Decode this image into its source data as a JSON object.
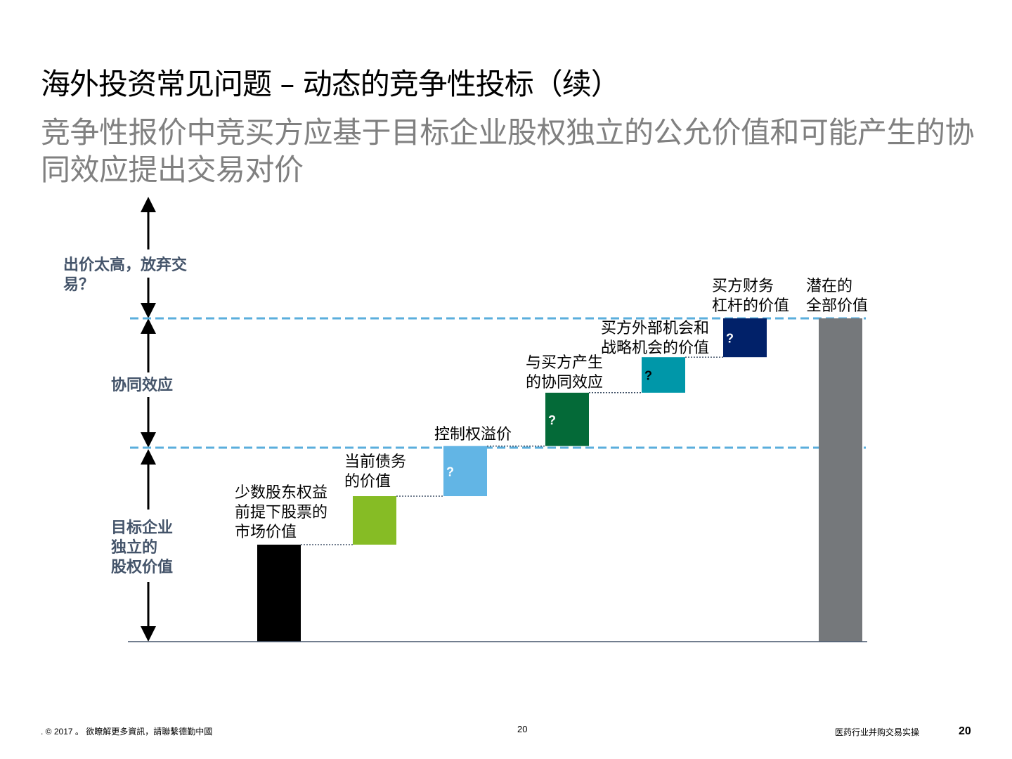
{
  "slide": {
    "title": "海外投资常见问题 – 动态的竞争性投标（续）",
    "subtitle": "竞争性报价中竞买方应基于目标企业股权独立的公允价值和可能产生的协同效应提出交易对价"
  },
  "side_labels": {
    "top": "出价太高，放弃交易？",
    "middle": "协同效应",
    "bottom_lines": [
      "目标企业",
      "独立的",
      "股权价值"
    ]
  },
  "chart_data": {
    "type": "waterfall",
    "title": "",
    "xlabel": "",
    "ylabel": "",
    "ylim": [
      0,
      100
    ],
    "grid": false,
    "reference_lines": [
      {
        "name": "standalone-equity-value-line",
        "value": 60,
        "style": "dashed",
        "color": "#5aaedc"
      },
      {
        "name": "full-potential-value-line",
        "value": 100,
        "style": "dashed",
        "color": "#5aaedc"
      }
    ],
    "bars": [
      {
        "label_lines": [
          "少数股东权益",
          "前提下股票的",
          "市场价值"
        ],
        "base": 0,
        "value": 30,
        "color": "#000000",
        "marker": ""
      },
      {
        "label_lines": [
          "当前债务",
          "的价值"
        ],
        "base": 30,
        "value": 15,
        "color": "#86bc25",
        "marker": ""
      },
      {
        "label_lines": [
          "控制权溢价"
        ],
        "base": 45,
        "value": 15.5,
        "color": "#62b5e5",
        "marker": "?"
      },
      {
        "label_lines": [
          "与买方产生",
          "的协同效应"
        ],
        "base": 60.5,
        "value": 16.5,
        "color": "#046a38",
        "marker": "?"
      },
      {
        "label_lines": [
          "买方外部机会和",
          "战略机会的价值"
        ],
        "base": 77,
        "value": 11,
        "color": "#0097a9",
        "marker": "?"
      },
      {
        "label_lines": [
          "买方财务",
          "杠杆的价值"
        ],
        "base": 88,
        "value": 12,
        "color": "#012169",
        "marker": "?"
      },
      {
        "label_lines": [
          "潜在的",
          "全部价值"
        ],
        "base": 0,
        "value": 100,
        "color": "#75787b",
        "marker": ""
      }
    ]
  },
  "footer": {
    "copyright": ". © 2017 。 欲瞭解更多資訊，請聯繫德勤中國",
    "center_page": "20",
    "doc_title": "医药行业并购交易实操",
    "page_number": "20"
  }
}
